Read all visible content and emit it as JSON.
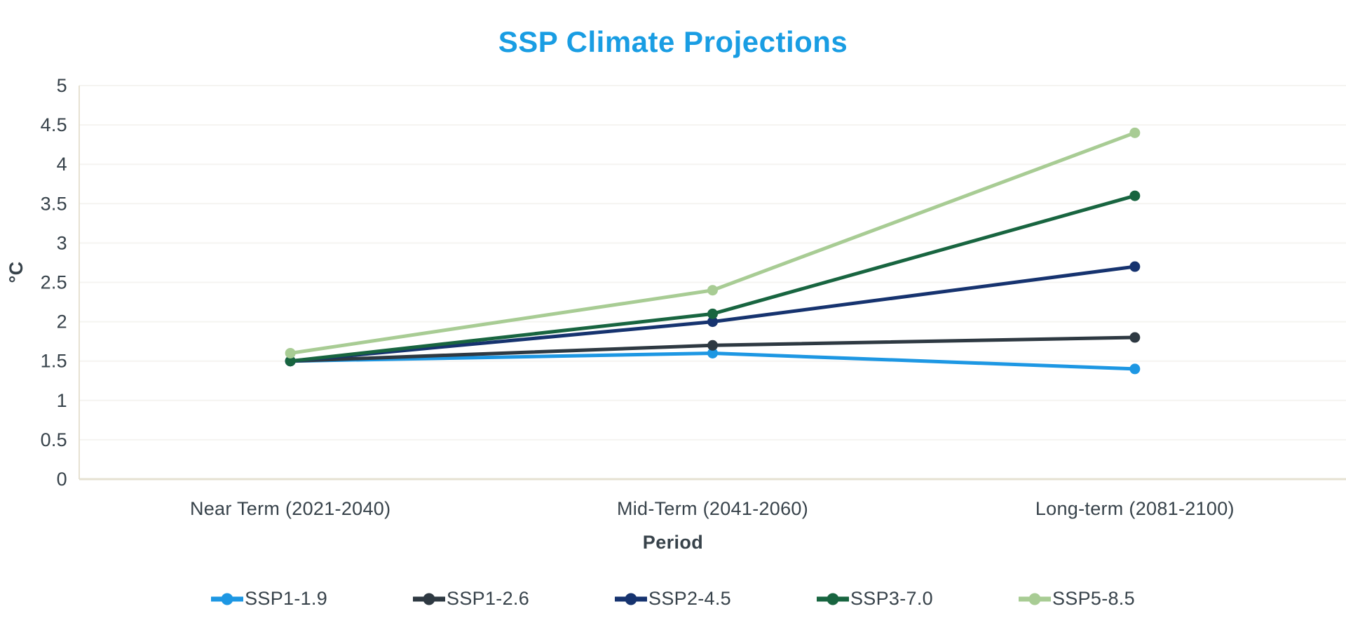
{
  "page": {
    "background": "#FFFFFF"
  },
  "chart_data": {
    "type": "line",
    "title": "SSP Climate Projections",
    "title_color": "#199DE3",
    "xlabel": "Period",
    "ylabel": "°C",
    "categories": [
      "Near Term (2021-2040)",
      "Mid-Term (2041-2060)",
      "Long-term (2081-2100)"
    ],
    "series": [
      {
        "name": "SSP1-1.9",
        "color": "#1D97E3",
        "values": [
          1.5,
          1.6,
          1.4
        ]
      },
      {
        "name": "SSP1-2.6",
        "color": "#2E3942",
        "values": [
          1.5,
          1.7,
          1.8
        ]
      },
      {
        "name": "SSP2-4.5",
        "color": "#16336F",
        "values": [
          1.5,
          2.0,
          2.7
        ]
      },
      {
        "name": "SSP3-7.0",
        "color": "#186540",
        "values": [
          1.5,
          2.1,
          3.6
        ]
      },
      {
        "name": "SSP5-8.5",
        "color": "#A8CC94",
        "values": [
          1.6,
          2.4,
          4.4
        ]
      }
    ],
    "ylim": [
      0,
      5
    ],
    "ytick_step": 0.5,
    "ytick_labels": [
      "0",
      "0.5",
      "1",
      "1.5",
      "2",
      "2.5",
      "3",
      "3.5",
      "4",
      "4.5",
      "5"
    ],
    "grid": true,
    "legend_position": "bottom",
    "text_color": "#37424A",
    "gridline_color": "#F5F4F1",
    "axis_line_color": "#E6E1D2"
  }
}
